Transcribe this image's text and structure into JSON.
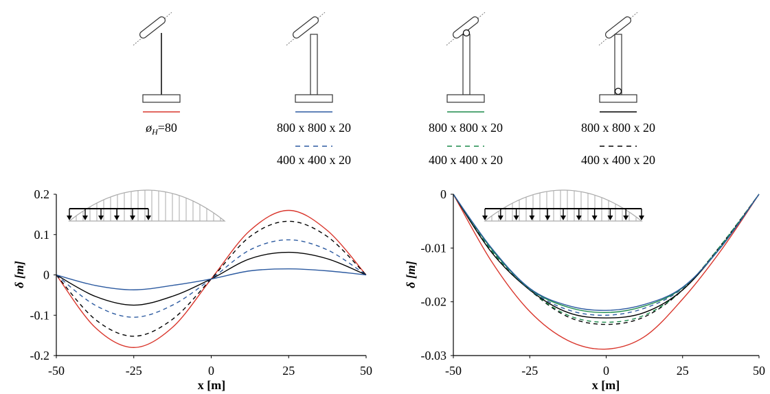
{
  "legend": {
    "columns": [
      {
        "top_label": "80",
        "symbol_prefix": "ø",
        "symbol_sub": "H",
        "symbol_eq": "=",
        "top_color": "#d9352b",
        "top_dash": "solid",
        "bottom_label": "",
        "bottom_color": "",
        "bottom_dash": "none",
        "icon": "thin-rod-column-icon"
      },
      {
        "top_label": "800 x 800 x 20",
        "top_color": "#2c5aa0",
        "top_dash": "solid",
        "bottom_label": "400 x 400 x 20",
        "bottom_color": "#2c5aa0",
        "bottom_dash": "dashed",
        "icon": "fixed-column-icon"
      },
      {
        "top_label": "800 x 800 x 20",
        "top_color": "#1a8a4a",
        "top_dash": "solid",
        "bottom_label": "400 x 400 x 20",
        "bottom_color": "#1a8a4a",
        "bottom_dash": "dashed",
        "icon": "pinned-top-column-icon"
      },
      {
        "top_label": "800 x 800 x 20",
        "top_color": "#000000",
        "top_dash": "solid",
        "bottom_label": "400 x 400 x 20",
        "bottom_color": "#000000",
        "bottom_dash": "dashed",
        "icon": "pinned-base-column-icon"
      }
    ]
  },
  "chart_data": [
    {
      "type": "line",
      "xlabel": "x [m]",
      "ylabel": "δ [m]",
      "xlim": [
        -50,
        50
      ],
      "ylim": [
        -0.2,
        0.2
      ],
      "xticks": [
        "-50",
        "-25",
        "0",
        "25",
        "50"
      ],
      "yticks": [
        "0.2",
        "0.1",
        "0",
        "-0.1",
        "-0.2"
      ],
      "ytick_values": [
        0.2,
        0.1,
        0,
        -0.1,
        -0.2
      ],
      "xtick_values": [
        -50,
        -25,
        0,
        25,
        50
      ],
      "grid": false,
      "load_diagram": "partial-load-left-half",
      "series": [
        {
          "color": "#d9352b",
          "dash": "solid",
          "x": [
            -50,
            -37.5,
            -25,
            -12.5,
            0,
            12.5,
            25,
            37.5,
            50
          ],
          "y": [
            0,
            -0.13,
            -0.18,
            -0.13,
            -0.01,
            0.11,
            0.16,
            0.11,
            0
          ]
        },
        {
          "color": "#000000",
          "dash": "dashed",
          "x": [
            -50,
            -37.5,
            -25,
            -12.5,
            0,
            12.5,
            25,
            37.5,
            50
          ],
          "y": [
            0,
            -0.11,
            -0.152,
            -0.11,
            -0.01,
            0.095,
            0.133,
            0.095,
            0
          ]
        },
        {
          "color": "#2c5aa0",
          "dash": "dashed",
          "x": [
            -50,
            -37.5,
            -25,
            -12.5,
            0,
            12.5,
            25,
            37.5,
            50
          ],
          "y": [
            0,
            -0.075,
            -0.105,
            -0.075,
            -0.01,
            0.062,
            0.087,
            0.062,
            0
          ]
        },
        {
          "color": "#000000",
          "dash": "solid",
          "x": [
            -50,
            -37.5,
            -25,
            -12.5,
            0,
            12.5,
            25,
            37.5,
            50
          ],
          "y": [
            0,
            -0.053,
            -0.075,
            -0.053,
            -0.01,
            0.04,
            0.056,
            0.04,
            0
          ]
        },
        {
          "color": "#2c5aa0",
          "dash": "solid",
          "x": [
            -50,
            -37.5,
            -25,
            -12.5,
            0,
            12.5,
            25,
            37.5,
            50
          ],
          "y": [
            0,
            -0.026,
            -0.037,
            -0.026,
            -0.01,
            0.01,
            0.015,
            0.01,
            0
          ]
        }
      ]
    },
    {
      "type": "line",
      "xlabel": "x [m]",
      "ylabel": "δ [m]",
      "xlim": [
        -50,
        50
      ],
      "ylim": [
        -0.03,
        0
      ],
      "xticks": [
        "-50",
        "-25",
        "0",
        "25",
        "50"
      ],
      "yticks": [
        "0",
        "-0.01",
        "-0.02",
        "-0.03"
      ],
      "ytick_values": [
        0,
        -0.01,
        -0.02,
        -0.03
      ],
      "xtick_values": [
        -50,
        -25,
        0,
        25,
        50
      ],
      "grid": false,
      "load_diagram": "full-load-span",
      "series": [
        {
          "color": "#d9352b",
          "dash": "solid",
          "x": [
            -50,
            -37.5,
            -25,
            -12.5,
            0,
            12.5,
            25,
            37.5,
            50
          ],
          "y": [
            0,
            -0.0125,
            -0.0218,
            -0.0272,
            -0.0288,
            -0.0265,
            -0.0195,
            -0.0105,
            0
          ]
        },
        {
          "color": "#000000",
          "dash": "dashed",
          "x": [
            -50,
            -37.5,
            -25,
            -12.5,
            0,
            12.5,
            25,
            37.5,
            50
          ],
          "y": [
            0,
            -0.0105,
            -0.0178,
            -0.0228,
            -0.0242,
            -0.0228,
            -0.0178,
            -0.0095,
            0
          ]
        },
        {
          "color": "#1a8a4a",
          "dash": "dashed",
          "x": [
            -50,
            -37.5,
            -25,
            -12.5,
            0,
            12.5,
            25,
            37.5,
            50
          ],
          "y": [
            0,
            -0.0105,
            -0.0178,
            -0.0225,
            -0.0238,
            -0.0225,
            -0.0178,
            -0.0095,
            0
          ]
        },
        {
          "color": "#000000",
          "dash": "solid",
          "x": [
            -50,
            -37.5,
            -25,
            -12.5,
            0,
            12.5,
            25,
            37.5,
            50
          ],
          "y": [
            0,
            -0.0108,
            -0.0178,
            -0.022,
            -0.023,
            -0.022,
            -0.0178,
            -0.0098,
            0
          ]
        },
        {
          "color": "#2c5aa0",
          "dash": "dashed",
          "x": [
            -50,
            -37.5,
            -25,
            -12.5,
            0,
            12.5,
            25,
            37.5,
            50
          ],
          "y": [
            0,
            -0.0103,
            -0.0177,
            -0.0215,
            -0.0225,
            -0.0212,
            -0.0175,
            -0.0097,
            0
          ]
        },
        {
          "color": "#1a8a4a",
          "dash": "solid",
          "x": [
            -50,
            -37.5,
            -25,
            -12.5,
            0,
            12.5,
            25,
            37.5,
            50
          ],
          "y": [
            0,
            -0.0102,
            -0.0176,
            -0.021,
            -0.022,
            -0.0208,
            -0.0174,
            -0.0098,
            0
          ]
        },
        {
          "color": "#2c5aa0",
          "dash": "solid",
          "x": [
            -50,
            -37.5,
            -25,
            -12.5,
            0,
            12.5,
            25,
            37.5,
            50
          ],
          "y": [
            0,
            -0.01,
            -0.0175,
            -0.0207,
            -0.0216,
            -0.0205,
            -0.0173,
            -0.0099,
            0
          ]
        }
      ]
    }
  ]
}
